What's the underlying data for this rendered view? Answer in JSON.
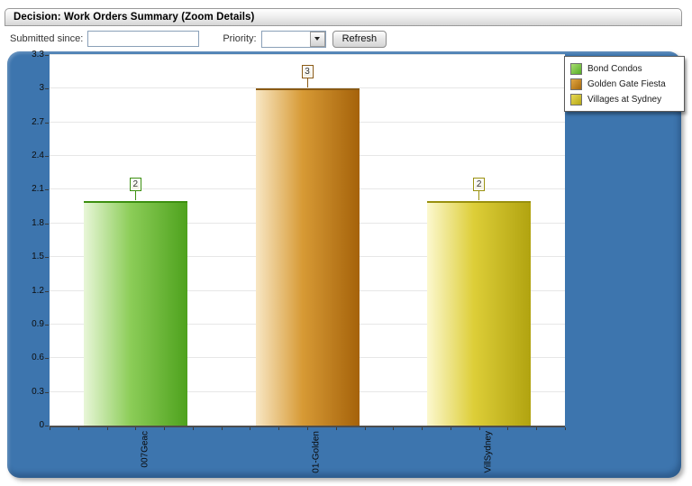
{
  "header": {
    "title": "Decision: Work Orders Summary (Zoom Details)"
  },
  "filters": {
    "submitted_since_label": "Submitted since:",
    "submitted_since_value": "",
    "priority_label": "Priority:",
    "priority_value": "",
    "refresh_label": "Refresh"
  },
  "chart_data": {
    "type": "bar",
    "title": "Work Orders Summary",
    "xlabel": "",
    "ylabel": "",
    "ylim": [
      0,
      3.3
    ],
    "ytick_step": 0.3,
    "yticks": [
      "3.3",
      "3",
      "2.7",
      "2.4",
      "2.1",
      "1.8",
      "1.5",
      "1.2",
      "0.9",
      "0.6",
      "0.3",
      "0"
    ],
    "grid": "horizontal",
    "legend_position": "top-right",
    "categories": [
      "007Geac",
      "01-Golden",
      "VillSydney"
    ],
    "values": [
      2,
      3,
      2
    ],
    "bars": [
      {
        "category": "007Geac",
        "series": "Bond Condos",
        "value": 2,
        "value_label": "2",
        "color_light": "#e8f6d8",
        "color_mid": "#8ccd58",
        "color_dark": "#4ea21d",
        "color_border": "#3c8f10"
      },
      {
        "category": "01-Golden",
        "series": "Golden Gate Fiesta",
        "value": 3,
        "value_label": "3",
        "color_light": "#f8e7c4",
        "color_mid": "#d79a35",
        "color_dark": "#a5620a",
        "color_border": "#8a5a14"
      },
      {
        "category": "VillSydney",
        "series": "Villages at Sydney",
        "value": 2,
        "value_label": "2",
        "color_light": "#fcf8cf",
        "color_mid": "#ddce38",
        "color_dark": "#b1a310",
        "color_border": "#99900e"
      }
    ],
    "legend": [
      {
        "label": "Bond Condos",
        "color_light": "#a9de72",
        "color_dark": "#55ad24"
      },
      {
        "label": "Golden Gate Fiesta",
        "color_light": "#e2a744",
        "color_dark": "#a8690b"
      },
      {
        "label": "Villages at Sydney",
        "color_light": "#e9da58",
        "color_dark": "#b5a713"
      }
    ],
    "colors": {
      "panel_background": "#3d75ae",
      "plot_background": "#ffffff",
      "gridline": "#e7e7e7",
      "axis": "#4d4d4d"
    }
  }
}
